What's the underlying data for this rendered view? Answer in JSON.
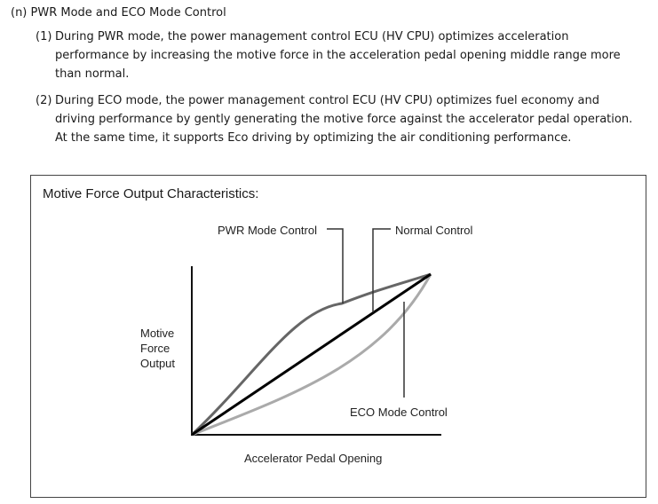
{
  "heading": "(n) PWR Mode and ECO Mode Control",
  "items": [
    {
      "num": "(1)",
      "text": "During PWR mode, the power management control ECU (HV CPU) optimizes acceleration performance by increasing the motive force in the acceleration pedal opening middle range more than normal."
    },
    {
      "num": "(2)",
      "text": "During ECO mode, the power management control ECU (HV CPU) optimizes fuel economy and driving performance by gently generating the motive force against the accelerator pedal operation. At the same time, it supports Eco driving by optimizing the air conditioning performance."
    }
  ],
  "figure": {
    "title": "Motive Force Output Characteristics:",
    "y_label": [
      "Motive",
      "Force",
      "Output"
    ],
    "x_label": "Accelerator Pedal Opening",
    "curves": {
      "pwr": {
        "label": "PWR Mode Control",
        "color": "#666666"
      },
      "normal": {
        "label": "Normal Control",
        "color": "#000000"
      },
      "eco": {
        "label": "ECO Mode Control",
        "color": "#aaaaaa"
      }
    }
  }
}
